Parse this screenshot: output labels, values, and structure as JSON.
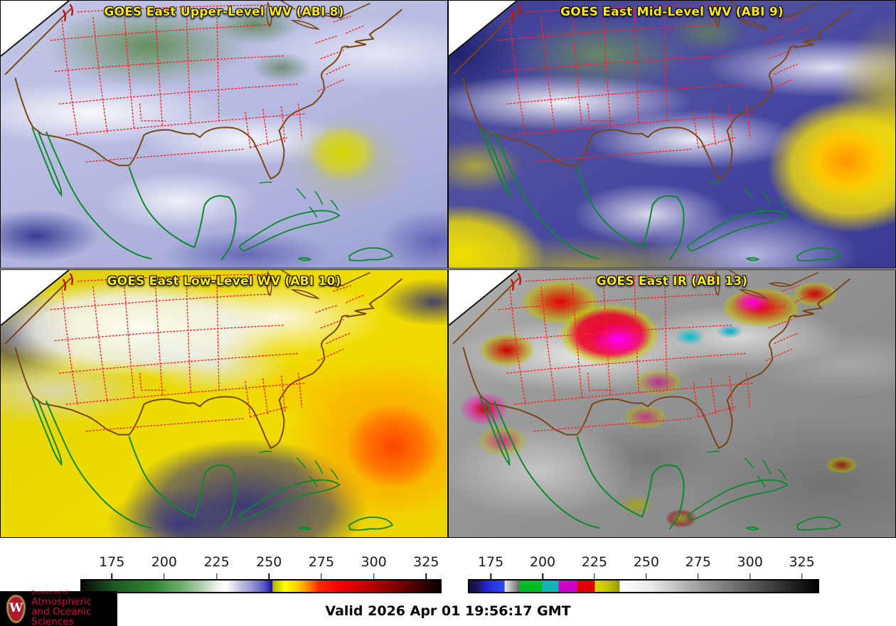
{
  "panels": [
    {
      "key": "upper_wv",
      "title": "GOES East Upper-Level WV (ABI 8)"
    },
    {
      "key": "mid_wv",
      "title": "GOES East Mid-Level WV (ABI 9)"
    },
    {
      "key": "low_wv",
      "title": "GOES East Low-Level WV (ABI 10)"
    },
    {
      "key": "ir",
      "title": "GOES East IR (ABI 13)"
    }
  ],
  "colorbars": {
    "left": {
      "name": "water-vapor brightness temperature scale (K)",
      "ticks": [
        "175",
        "200",
        "225",
        "250",
        "275",
        "300",
        "325"
      ],
      "tick_values": [
        175,
        200,
        225,
        250,
        275,
        300,
        325
      ],
      "range": [
        160,
        331
      ],
      "stops": [
        {
          "k": 160,
          "c": "#060606"
        },
        {
          "k": 165,
          "c": "#0c2410"
        },
        {
          "k": 176,
          "c": "#1d5a20"
        },
        {
          "k": 194,
          "c": "#2f8632"
        },
        {
          "k": 206,
          "c": "#63ab63"
        },
        {
          "k": 216,
          "c": "#a4cba4"
        },
        {
          "k": 225,
          "c": "#eef2ee"
        },
        {
          "k": 229,
          "c": "#ffffff"
        },
        {
          "k": 235,
          "c": "#c6c6e8"
        },
        {
          "k": 241,
          "c": "#9898d4"
        },
        {
          "k": 247,
          "c": "#5a5ac2"
        },
        {
          "k": 250,
          "c": "#2222aa"
        },
        {
          "k": 250.8,
          "c": "#15159c"
        },
        {
          "k": 251.2,
          "c": "#b4b400"
        },
        {
          "k": 257,
          "c": "#ffff00"
        },
        {
          "k": 263,
          "c": "#ffcc00"
        },
        {
          "k": 268,
          "c": "#ff8800"
        },
        {
          "k": 273,
          "c": "#ff2a00"
        },
        {
          "k": 284,
          "c": "#ea0000"
        },
        {
          "k": 296,
          "c": "#c00000"
        },
        {
          "k": 308,
          "c": "#880000"
        },
        {
          "k": 320,
          "c": "#440000"
        },
        {
          "k": 331,
          "c": "#070000"
        }
      ]
    },
    "right": {
      "name": "IR enhanced brightness temperature scale (K)",
      "ticks": [
        "175",
        "200",
        "225",
        "250",
        "275",
        "300",
        "325"
      ],
      "tick_values": [
        175,
        200,
        225,
        250,
        275,
        300,
        325
      ],
      "range": [
        164,
        332
      ],
      "stops": [
        {
          "k": 164,
          "c": "#16103e"
        },
        {
          "k": 169,
          "c": "#201a6e"
        },
        {
          "k": 171.5,
          "c": "#2222cc"
        },
        {
          "k": 179,
          "c": "#2a46ee"
        },
        {
          "k": 180.8,
          "c": "#2a46ee"
        },
        {
          "k": 181.2,
          "c": "#e9e9e9"
        },
        {
          "k": 187.8,
          "c": "#6f6f6f"
        },
        {
          "k": 188.2,
          "c": "#00bb22"
        },
        {
          "k": 198.8,
          "c": "#00bb22"
        },
        {
          "k": 199.2,
          "c": "#12b5b5"
        },
        {
          "k": 206.8,
          "c": "#12b5b5"
        },
        {
          "k": 207.2,
          "c": "#cc00cc"
        },
        {
          "k": 215.8,
          "c": "#cc00cc"
        },
        {
          "k": 216.2,
          "c": "#dd0000"
        },
        {
          "k": 224.3,
          "c": "#dd0000"
        },
        {
          "k": 224.7,
          "c": "#d8d800"
        },
        {
          "k": 230,
          "c": "#c8c800"
        },
        {
          "k": 236.3,
          "c": "#989800"
        },
        {
          "k": 236.7,
          "c": "#ffffff"
        },
        {
          "k": 252,
          "c": "#e8e8e8"
        },
        {
          "k": 275,
          "c": "#9e9e9e"
        },
        {
          "k": 300,
          "c": "#5a5a5a"
        },
        {
          "k": 320,
          "c": "#222222"
        },
        {
          "k": 332,
          "c": "#000000"
        }
      ]
    }
  },
  "footer": {
    "valid_label": "Valid 2026 Apr 01 19:56:17 GMT",
    "logo": {
      "monogram": "W",
      "department": "Department of",
      "line1": "Atmospheric",
      "line2": "and Oceanic Sciences"
    }
  },
  "colors": {
    "title_text": "#ffe81a",
    "state_border": "#ff2020",
    "us_coastline": "#7a4513",
    "international_coastline": "#0b8a2d",
    "tick_label_text": "#1a1a1a",
    "valid_text": "#000000",
    "logo_background": "#000000",
    "logo_text": "#c81040"
  }
}
